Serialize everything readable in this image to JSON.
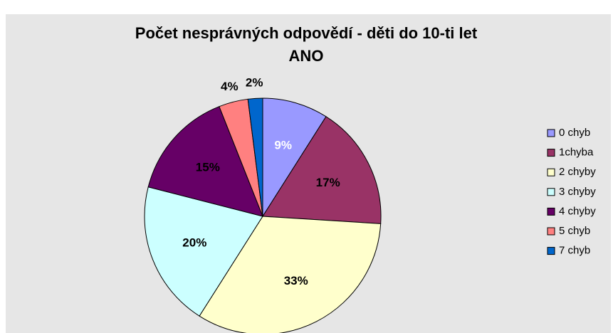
{
  "chart_data": {
    "type": "pie",
    "title": [
      "Počet nesprávných odpovědí - děti do 10-ti let",
      "ANO"
    ],
    "categories": [
      "0 chyb",
      "1chyba",
      "2 chyby",
      "3 chyby",
      "4 chyby",
      "5 chyb",
      "7 chyb"
    ],
    "values": [
      9,
      17,
      33,
      20,
      15,
      4,
      2
    ],
    "value_labels": [
      "9%",
      "17%",
      "33%",
      "20%",
      "15%",
      "4%",
      "2%"
    ],
    "colors": [
      "#9999ff",
      "#993366",
      "#ffffcc",
      "#ccffff",
      "#660066",
      "#ff8080",
      "#0066cc"
    ],
    "legend": "right"
  }
}
